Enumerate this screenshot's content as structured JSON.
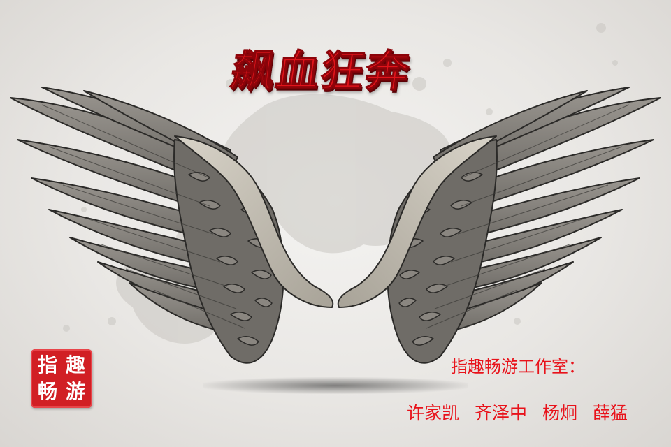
{
  "title": "飙血狂奔",
  "logo_stamp": {
    "chars": [
      "指",
      "趣",
      "畅",
      "游"
    ],
    "color": "#d11f24"
  },
  "studio_label": "指趣畅游工作室：",
  "members": [
    "许家凯",
    "齐泽中",
    "杨炯",
    "薛猛"
  ],
  "colors": {
    "title": "#e0141b",
    "credits": "#e8121a",
    "wing_fill": "#807d78",
    "wing_dark": "#2b2a28",
    "background": "#ebe9e6"
  },
  "icons": {
    "artwork": "angel-wings-icon"
  }
}
